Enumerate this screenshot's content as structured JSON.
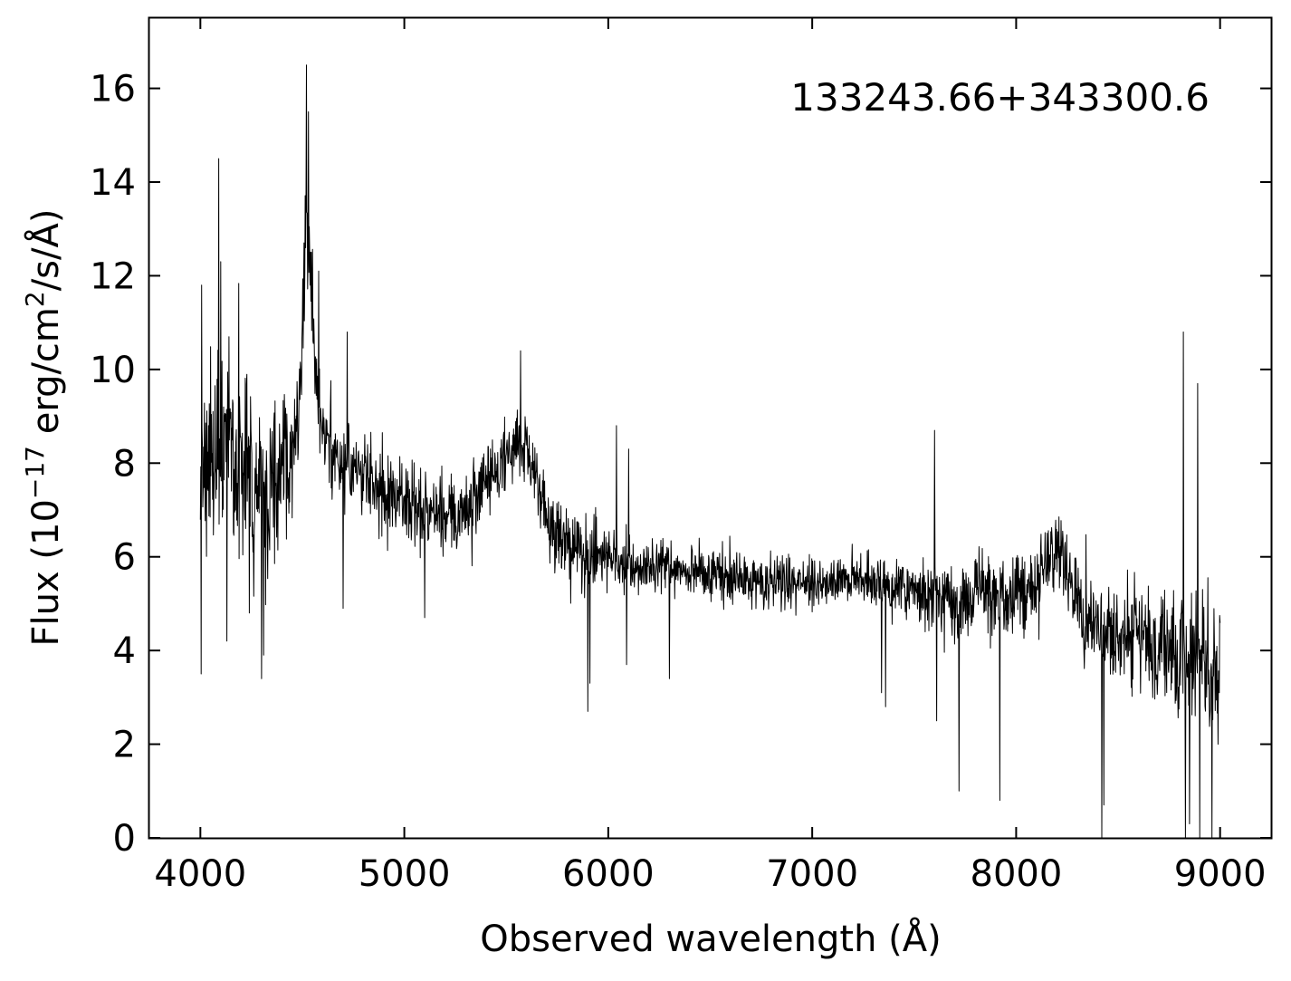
{
  "chart_data": {
    "type": "line",
    "title": "",
    "annotation": "133243.66+343300.6",
    "xlabel": "Observed wavelength (Å)",
    "ylabel": {
      "prefix": "Flux (10",
      "exponent": "−17",
      "middle": " erg/cm",
      "exponent2": "2",
      "suffix": "/s/Å)"
    },
    "xlim": [
      3750,
      9250
    ],
    "ylim": [
      0,
      17.5
    ],
    "xticks": [
      4000,
      5000,
      6000,
      7000,
      8000,
      9000
    ],
    "xtick_labels": [
      "4000",
      "5000",
      "6000",
      "7000",
      "8000",
      "9000"
    ],
    "yticks": [
      0,
      2,
      4,
      6,
      8,
      10,
      12,
      14,
      16
    ],
    "ytick_labels": [
      "0",
      "2",
      "4",
      "6",
      "8",
      "10",
      "12",
      "14",
      "16"
    ],
    "grid": false,
    "line_color": "#000000",
    "series": [
      {
        "x": [
          4000,
          4050,
          4100,
          4150,
          4200,
          4250,
          4300,
          4350,
          4400,
          4450,
          4480,
          4500,
          4510,
          4520,
          4530,
          4540,
          4560,
          4580,
          4600,
          4650,
          4700,
          4750,
          4800,
          4850,
          4900,
          4950,
          5000,
          5050,
          5100,
          5150,
          5200,
          5250,
          5300,
          5350,
          5400,
          5450,
          5500,
          5550,
          5600,
          5650,
          5700,
          5750,
          5800,
          5850,
          5900,
          5950,
          6000,
          6050,
          6100,
          6150,
          6200,
          6250,
          6300,
          6350,
          6400,
          6450,
          6500,
          6550,
          6600,
          6650,
          6700,
          6750,
          6800,
          6850,
          6900,
          6950,
          7000,
          7050,
          7100,
          7150,
          7200,
          7250,
          7300,
          7350,
          7400,
          7450,
          7500,
          7550,
          7600,
          7650,
          7700,
          7750,
          7800,
          7850,
          7900,
          7950,
          8000,
          8050,
          8100,
          8150,
          8180,
          8200,
          8250,
          8300,
          8350,
          8400,
          8450,
          8500,
          8550,
          8600,
          8650,
          8700,
          8750,
          8800,
          8850,
          8900,
          8950,
          9000
        ],
        "y": [
          7.9,
          8.1,
          8.2,
          8.0,
          7.9,
          7.8,
          7.6,
          7.7,
          8.0,
          8.4,
          9.0,
          10.3,
          11.8,
          13.6,
          13.0,
          11.8,
          10.3,
          9.3,
          8.8,
          8.3,
          8.0,
          7.8,
          7.8,
          7.6,
          7.4,
          7.3,
          7.2,
          7.1,
          7.0,
          7.0,
          6.8,
          6.9,
          7.0,
          7.3,
          7.6,
          7.9,
          8.1,
          8.4,
          8.1,
          7.5,
          6.9,
          6.5,
          6.3,
          6.2,
          6.1,
          6.0,
          6.0,
          6.0,
          5.9,
          5.8,
          5.8,
          5.8,
          5.8,
          5.7,
          5.7,
          5.6,
          5.6,
          5.6,
          5.6,
          5.5,
          5.5,
          5.5,
          5.5,
          5.5,
          5.4,
          5.4,
          5.4,
          5.5,
          5.5,
          5.5,
          5.5,
          5.4,
          5.4,
          5.3,
          5.3,
          5.3,
          5.3,
          5.2,
          5.2,
          5.1,
          5.1,
          5.1,
          5.1,
          5.1,
          5.1,
          5.1,
          5.2,
          5.3,
          5.5,
          5.9,
          6.3,
          6.2,
          5.7,
          5.0,
          4.6,
          4.4,
          4.3,
          4.3,
          4.2,
          4.2,
          4.1,
          4.0,
          4.0,
          3.9,
          3.8,
          3.8,
          3.7,
          3.7
        ],
        "noise": [
          1.9,
          1.9,
          1.9,
          1.9,
          1.9,
          1.9,
          1.9,
          1.8,
          1.6,
          1.3,
          1.0,
          1.0,
          1.2,
          1.2,
          1.2,
          1.1,
          1.0,
          0.9,
          0.8,
          0.8,
          0.8,
          0.8,
          0.8,
          0.8,
          0.8,
          0.8,
          0.8,
          0.8,
          0.8,
          0.8,
          0.8,
          0.8,
          0.8,
          0.8,
          0.8,
          0.8,
          0.8,
          0.8,
          0.8,
          0.8,
          0.8,
          0.7,
          0.7,
          0.7,
          0.7,
          0.7,
          0.6,
          0.6,
          0.6,
          0.5,
          0.5,
          0.5,
          0.5,
          0.5,
          0.5,
          0.5,
          0.5,
          0.5,
          0.5,
          0.5,
          0.5,
          0.5,
          0.5,
          0.5,
          0.5,
          0.5,
          0.5,
          0.5,
          0.5,
          0.5,
          0.5,
          0.5,
          0.6,
          0.6,
          0.6,
          0.6,
          0.6,
          0.7,
          0.7,
          0.8,
          0.8,
          0.8,
          0.8,
          0.8,
          0.8,
          0.8,
          0.8,
          0.8,
          0.8,
          0.8,
          0.8,
          0.8,
          0.8,
          0.9,
          0.9,
          0.9,
          0.9,
          1.0,
          1.0,
          1.0,
          1.1,
          1.1,
          1.2,
          1.3,
          1.4,
          1.4,
          1.4,
          1.4
        ],
        "spikes": [
          {
            "x": 4003,
            "y": 3.5
          },
          {
            "x": 4006,
            "y": 11.8
          },
          {
            "x": 4090,
            "y": 14.5
          },
          {
            "x": 4100,
            "y": 12.3
          },
          {
            "x": 4130,
            "y": 4.2
          },
          {
            "x": 4240,
            "y": 4.8
          },
          {
            "x": 4300,
            "y": 3.4
          },
          {
            "x": 4310,
            "y": 3.9
          },
          {
            "x": 4520,
            "y": 16.5
          },
          {
            "x": 4530,
            "y": 15.5
          },
          {
            "x": 4580,
            "y": 12.1
          },
          {
            "x": 4700,
            "y": 4.9
          },
          {
            "x": 4720,
            "y": 10.8
          },
          {
            "x": 5100,
            "y": 4.7
          },
          {
            "x": 5570,
            "y": 10.4
          },
          {
            "x": 5900,
            "y": 2.7
          },
          {
            "x": 5910,
            "y": 3.3
          },
          {
            "x": 6040,
            "y": 8.8
          },
          {
            "x": 6100,
            "y": 8.3
          },
          {
            "x": 6090,
            "y": 3.7
          },
          {
            "x": 6300,
            "y": 3.4
          },
          {
            "x": 7340,
            "y": 3.1
          },
          {
            "x": 7360,
            "y": 2.8
          },
          {
            "x": 7600,
            "y": 8.7
          },
          {
            "x": 7610,
            "y": 2.5
          },
          {
            "x": 7720,
            "y": 1.0
          },
          {
            "x": 7920,
            "y": 0.8
          },
          {
            "x": 8420,
            "y": 0.0
          },
          {
            "x": 8430,
            "y": 0.7
          },
          {
            "x": 8820,
            "y": 10.8
          },
          {
            "x": 8830,
            "y": 0.0
          },
          {
            "x": 8850,
            "y": 0.3
          },
          {
            "x": 8890,
            "y": 9.7
          },
          {
            "x": 8900,
            "y": 0.0
          },
          {
            "x": 8960,
            "y": 0.0
          },
          {
            "x": 8990,
            "y": 2.0
          }
        ]
      }
    ]
  }
}
